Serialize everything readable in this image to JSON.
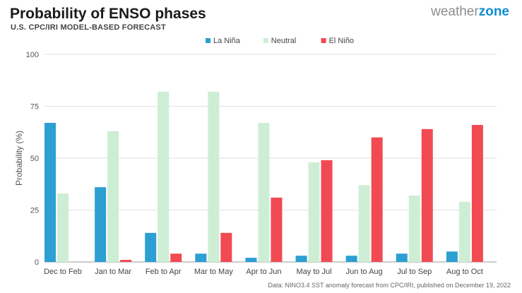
{
  "header": {
    "title": "Probability of ENSO phases",
    "subtitle": "U.S. CPC/IRI MODEL-BASED FORECAST",
    "logo_part1": "weather",
    "logo_part2": "zone"
  },
  "footer": {
    "source": "Data: NINO3.4 SST anomaly forecast from CPC/IRI, published on December 19, 2022"
  },
  "chart_data": {
    "type": "bar",
    "title": "Probability of ENSO phases",
    "subtitle": "U.S. CPC/IRI MODEL-BASED FORECAST",
    "xlabel": "",
    "ylabel": "Probability (%)",
    "ylim": [
      0,
      100
    ],
    "yticks": [
      0,
      25,
      50,
      75,
      100
    ],
    "grid": true,
    "legend_position": "top-center",
    "categories": [
      "Dec to Feb",
      "Jan to Mar",
      "Feb to Apr",
      "Mar to May",
      "Apr to Jun",
      "May to Jul",
      "Jun to Aug",
      "Jul to Sep",
      "Aug to Oct"
    ],
    "series": [
      {
        "name": "La Niña",
        "color": "#2c9fd3",
        "values": [
          67,
          36,
          14,
          4,
          2,
          3,
          3,
          4,
          5
        ]
      },
      {
        "name": "Neutral",
        "color": "#cdeed4",
        "values": [
          33,
          63,
          82,
          82,
          67,
          48,
          37,
          32,
          29
        ]
      },
      {
        "name": "El Niño",
        "color": "#f14a52",
        "values": [
          0,
          1,
          4,
          14,
          31,
          49,
          60,
          64,
          66
        ]
      }
    ]
  }
}
